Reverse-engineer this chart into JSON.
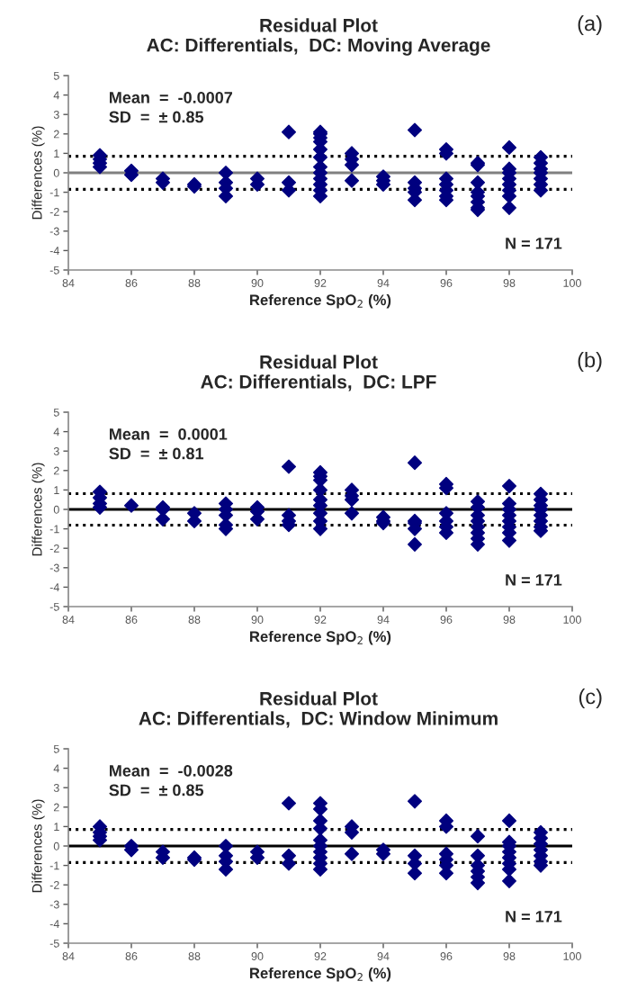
{
  "chart_data": [
    {
      "type": "scatter",
      "title": "Residual Plot",
      "subtitle": "AC: Differentials,  DC: Moving Average",
      "xlabel": "Reference SpO$_{2}$ (%)",
      "ylabel": "Differences (%)",
      "annotations": [
        "(a)",
        "Mean  =  -0.0007",
        "SD  =  ± 0.85",
        "N = 171"
      ],
      "series": [
        {
          "color": "#00007f",
          "x": [
            85,
            85,
            85,
            85,
            86,
            86,
            87,
            87,
            88,
            88,
            89,
            89,
            89,
            89,
            90,
            90,
            91,
            91,
            91,
            92,
            92,
            92,
            92,
            92,
            92,
            92,
            92,
            92,
            92,
            92,
            92,
            93,
            93,
            93,
            93,
            94,
            94,
            94,
            95,
            95,
            95,
            95,
            95,
            96,
            96,
            96,
            96,
            96,
            96,
            96,
            97,
            97,
            97,
            97,
            97,
            97,
            97,
            97,
            98,
            98,
            98,
            98,
            98,
            98,
            98,
            98,
            99,
            99,
            99,
            99,
            99,
            99,
            99
          ],
          "values": [
            0.3,
            0.5,
            0.7,
            0.9,
            -0.1,
            0.1,
            -0.3,
            -0.5,
            -0.6,
            -0.7,
            0,
            -0.5,
            -0.8,
            -1.2,
            -0.3,
            -0.6,
            2.1,
            -0.5,
            -0.9,
            2.1,
            2.0,
            1.8,
            1.6,
            1.2,
            0.8,
            0.3,
            0,
            -0.3,
            -0.6,
            -0.9,
            -1.2,
            1.0,
            0.7,
            0.4,
            -0.4,
            -0.2,
            -0.4,
            -0.6,
            2.2,
            -0.5,
            -0.8,
            -1.0,
            -1.4,
            1.2,
            1.0,
            -0.3,
            -0.6,
            -0.9,
            -1.2,
            -1.4,
            0.5,
            0.4,
            -0.5,
            -1.0,
            -1.2,
            -1.5,
            -1.8,
            -1.9,
            1.3,
            0.2,
            0,
            -0.3,
            -0.6,
            -0.9,
            -1.2,
            -1.8,
            0.8,
            0.5,
            0.2,
            0,
            -0.3,
            -0.6,
            -0.9
          ]
        }
      ],
      "xlim": [
        84,
        100
      ],
      "xticks": [
        84,
        86,
        88,
        90,
        92,
        94,
        96,
        98,
        100
      ],
      "ylim": [
        -5,
        5
      ],
      "yticks": [
        -5,
        -4,
        -3,
        -2,
        -1,
        0,
        1,
        2,
        3,
        4,
        5
      ],
      "ref_lines": [
        {
          "axis": "y",
          "value": 0,
          "color": "#808080",
          "line_style": "solid"
        },
        {
          "axis": "y",
          "value": 0.85,
          "color": "#000000",
          "line_style": "dotted"
        },
        {
          "axis": "y",
          "value": -0.85,
          "color": "#000000",
          "line_style": "dotted"
        }
      ],
      "marker": "diamond",
      "grid": false
    },
    {
      "type": "scatter",
      "title": "Residual Plot",
      "subtitle": "AC: Differentials,  DC: LPF",
      "xlabel": "Reference SpO$_{2}$ (%)",
      "ylabel": "Differences (%)",
      "annotations": [
        "(b)",
        "Mean  =  0.0001",
        "SD  =  ± 0.81",
        "N = 171"
      ],
      "series": [
        {
          "color": "#00007f",
          "x": [
            85,
            85,
            85,
            85,
            86,
            87,
            87,
            87,
            88,
            88,
            89,
            89,
            89,
            89,
            89,
            90,
            90,
            90,
            91,
            91,
            91,
            91,
            92,
            92,
            92,
            92,
            92,
            92,
            92,
            92,
            92,
            93,
            93,
            93,
            93,
            94,
            94,
            94,
            95,
            95,
            95,
            95,
            95,
            96,
            96,
            96,
            96,
            96,
            96,
            97,
            97,
            97,
            97,
            97,
            97,
            97,
            97,
            98,
            98,
            98,
            98,
            98,
            98,
            98,
            98,
            99,
            99,
            99,
            99,
            99,
            99,
            99,
            99
          ],
          "values": [
            0.9,
            0.6,
            0.3,
            0.1,
            0.2,
            0.1,
            0,
            -0.5,
            -0.2,
            -0.6,
            0.3,
            0,
            -0.3,
            -0.8,
            -1.0,
            0.1,
            -0.1,
            -0.5,
            2.2,
            -0.3,
            -0.6,
            -0.8,
            1.9,
            1.7,
            1.5,
            1.0,
            0.5,
            0.2,
            -0.2,
            -0.6,
            -1.0,
            1.0,
            0.7,
            0.5,
            -0.2,
            -0.4,
            -0.6,
            -0.7,
            2.4,
            -0.6,
            -0.7,
            -1.0,
            -1.8,
            1.3,
            1.1,
            -0.2,
            -0.6,
            -0.9,
            -1.2,
            0.4,
            0.1,
            -0.3,
            -0.6,
            -0.9,
            -1.2,
            -1.5,
            -1.8,
            1.2,
            0.3,
            0,
            -0.3,
            -0.6,
            -0.9,
            -1.2,
            -1.6,
            0.8,
            0.5,
            0.2,
            0,
            -0.3,
            -0.6,
            -0.9,
            -1.1
          ]
        }
      ],
      "xlim": [
        84,
        100
      ],
      "xticks": [
        84,
        86,
        88,
        90,
        92,
        94,
        96,
        98,
        100
      ],
      "ylim": [
        -5,
        5
      ],
      "yticks": [
        -5,
        -4,
        -3,
        -2,
        -1,
        0,
        1,
        2,
        3,
        4,
        5
      ],
      "ref_lines": [
        {
          "axis": "y",
          "value": 0,
          "color": "#000000",
          "line_style": "solid"
        },
        {
          "axis": "y",
          "value": 0.81,
          "color": "#000000",
          "line_style": "dotted"
        },
        {
          "axis": "y",
          "value": -0.81,
          "color": "#000000",
          "line_style": "dotted"
        }
      ],
      "marker": "diamond",
      "grid": false
    },
    {
      "type": "scatter",
      "title": "Residual Plot",
      "subtitle": "AC: Differentials,  DC: Window Minimum",
      "xlabel": "Reference SpO$_{2}$ (%)",
      "ylabel": "Differences (%)",
      "annotations": [
        "(c)",
        "Mean  =  -0.0028",
        "SD  =  ± 0.85",
        "N = 171"
      ],
      "series": [
        {
          "color": "#00007f",
          "x": [
            85,
            85,
            85,
            85,
            86,
            86,
            87,
            87,
            88,
            88,
            89,
            89,
            89,
            89,
            90,
            90,
            91,
            91,
            91,
            92,
            92,
            92,
            92,
            92,
            92,
            92,
            92,
            92,
            92,
            93,
            93,
            93,
            94,
            94,
            95,
            95,
            95,
            95,
            96,
            96,
            96,
            96,
            96,
            96,
            97,
            97,
            97,
            97,
            97,
            97,
            98,
            98,
            98,
            98,
            98,
            98,
            98,
            98,
            99,
            99,
            99,
            99,
            99,
            99,
            99
          ],
          "values": [
            1.0,
            0.7,
            0.5,
            0.3,
            0,
            -0.2,
            -0.3,
            -0.6,
            -0.6,
            -0.7,
            0,
            -0.5,
            -0.8,
            -1.2,
            -0.3,
            -0.6,
            2.2,
            -0.5,
            -0.9,
            2.2,
            1.9,
            1.3,
            0.9,
            0.3,
            0,
            -0.3,
            -0.6,
            -0.9,
            -1.2,
            1.0,
            0.7,
            -0.4,
            -0.2,
            -0.4,
            2.3,
            -0.5,
            -0.9,
            -1.4,
            1.3,
            1.0,
            -0.4,
            -0.7,
            -1.0,
            -1.4,
            0.5,
            -0.5,
            -1.0,
            -1.3,
            -1.6,
            -1.9,
            1.3,
            0.2,
            0,
            -0.3,
            -0.6,
            -0.9,
            -1.2,
            -1.8,
            0.7,
            0.4,
            0.1,
            -0.2,
            -0.5,
            -0.8,
            -1.0
          ]
        }
      ],
      "xlim": [
        84,
        100
      ],
      "xticks": [
        84,
        86,
        88,
        90,
        92,
        94,
        96,
        98,
        100
      ],
      "ylim": [
        -5,
        5
      ],
      "yticks": [
        -5,
        -4,
        -3,
        -2,
        -1,
        0,
        1,
        2,
        3,
        4,
        5
      ],
      "ref_lines": [
        {
          "axis": "y",
          "value": 0,
          "color": "#000000",
          "line_style": "solid"
        },
        {
          "axis": "y",
          "value": 0.85,
          "color": "#000000",
          "line_style": "dotted"
        },
        {
          "axis": "y",
          "value": -0.85,
          "color": "#000000",
          "line_style": "dotted"
        }
      ],
      "marker": "diamond",
      "grid": false
    }
  ]
}
